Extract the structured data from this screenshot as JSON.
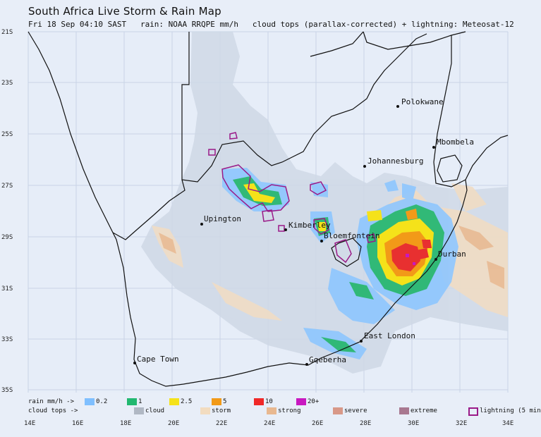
{
  "title": "South Africa Live Storm & Rain Map",
  "subtitle": "Fri 18 Sep 04:10 SAST   rain: NOAA RRQPE mm/h   cloud tops (parallax-corrected) + lightning: Meteosat-12",
  "colors": {
    "background": "#e8eef8",
    "cloud": "#c8d0dc",
    "storm": "#f2dcc0",
    "strong": "#e8b890",
    "severe": "#d89888",
    "extreme": "#a87890",
    "lightning": "#9a1a88",
    "rain_02": "#7fbfff",
    "rain_1": "#22b870",
    "rain_25": "#f5e21a",
    "rain_5": "#f29a18",
    "rain_10": "#f02828",
    "rain_20": "#c818c0"
  },
  "axes": {
    "lat_labels": [
      "21S",
      "23S",
      "25S",
      "27S",
      "29S",
      "31S",
      "33S",
      "35S"
    ],
    "lon_labels": [
      "14E",
      "16E",
      "18E",
      "20E",
      "22E",
      "24E",
      "26E",
      "28E",
      "30E",
      "32E",
      "34E"
    ]
  },
  "cities": [
    {
      "name": "Polokwane",
      "key": "polokwane"
    },
    {
      "name": "Mbombela",
      "key": "mbombela"
    },
    {
      "name": "Johannesburg",
      "key": "johannesburg"
    },
    {
      "name": "Upington",
      "key": "upington"
    },
    {
      "name": "Kimberley",
      "key": "kimberley"
    },
    {
      "name": "Bloemfontein",
      "key": "bloemfontein"
    },
    {
      "name": "Durban",
      "key": "durban"
    },
    {
      "name": "East London",
      "key": "eastlondon"
    },
    {
      "name": "Cape Town",
      "key": "capetown"
    },
    {
      "name": "Gqeberha",
      "key": "gqeberha"
    }
  ],
  "legend": {
    "rain_label": "rain mm/h ->",
    "cloud_label": "cloud tops ->",
    "rain_items": [
      {
        "label": "0.2",
        "color": "#7fbfff"
      },
      {
        "label": "1",
        "color": "#22b870"
      },
      {
        "label": "2.5",
        "color": "#f5e21a"
      },
      {
        "label": "5",
        "color": "#f29a18"
      },
      {
        "label": "10",
        "color": "#f02828"
      },
      {
        "label": "20+",
        "color": "#c818c0"
      }
    ],
    "cloud_items": [
      {
        "label": "cloud",
        "color": "#b0b8c4"
      },
      {
        "label": "storm",
        "color": "#f2dcc0"
      },
      {
        "label": "strong",
        "color": "#e8b890"
      },
      {
        "label": "severe",
        "color": "#d89888"
      },
      {
        "label": "extreme",
        "color": "#a87890"
      }
    ],
    "lightning_label": "lightning (5 min"
  }
}
